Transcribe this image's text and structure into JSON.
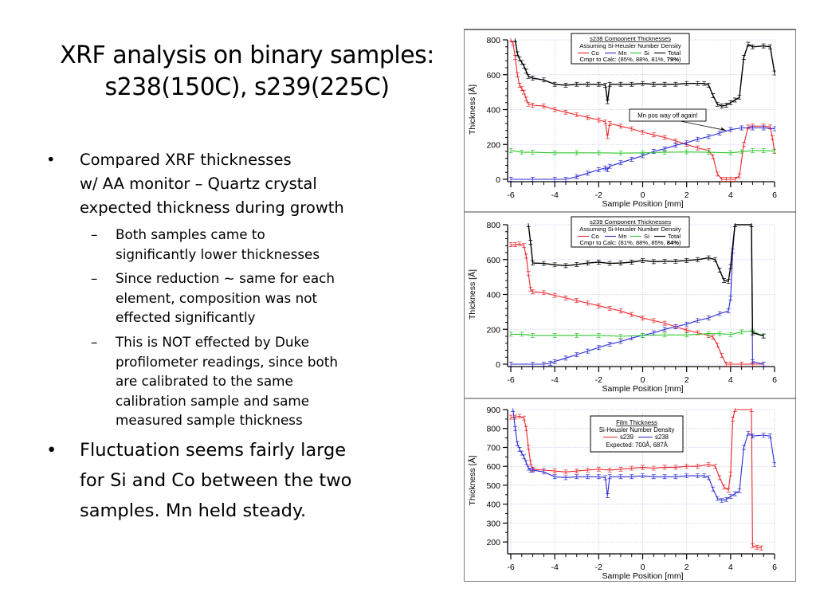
{
  "slide": {
    "title_line1": "XRF analysis on binary samples:",
    "title_line2": "s238(150C), s239(225C)",
    "bullets": [
      {
        "level": 1,
        "lines": [
          "Compared XRF thicknesses",
          "w/ AA monitor – Quartz crystal",
          "expected thickness during growth"
        ]
      },
      {
        "level": 2,
        "lines": [
          "Both samples came to",
          "significantly lower thicknesses"
        ]
      },
      {
        "level": 2,
        "lines": [
          "Since reduction ~ same for each",
          "element, composition was not",
          "effected significantly"
        ]
      },
      {
        "level": 2,
        "lines": [
          "This is NOT effected by Duke",
          "profilometer readings, since both",
          "are calibrated to the same",
          "calibration sample and same",
          "measured sample thickness"
        ]
      },
      {
        "level": 1,
        "lines": [
          "Fluctuation seems fairly large",
          "for Si and Co between the two",
          "samples.  Mn held steady."
        ]
      }
    ],
    "bullet_glyph": "•",
    "dash_glyph": "–"
  },
  "colors": {
    "co": "#e8262b",
    "mn": "#2a2ad0",
    "si": "#2fc62f",
    "total": "#000000",
    "s239": "#e8262b",
    "s238": "#2a2ad0",
    "grid": "#c9c9ee"
  },
  "chart_data": [
    {
      "type": "line",
      "title": "s238 Component Thicknesses",
      "subtitle": "Assuming Si-Heusler Number Density",
      "legend_entries": [
        "Co",
        "Mn",
        "Si",
        "Total"
      ],
      "compare_prefix": "Cmpr to Calc: (85%, 88%, 81%, ",
      "compare_bold": "79%",
      "compare_suffix": ")",
      "annotation": "Mn pos way off again!",
      "annotation_target": {
        "x": 4.0,
        "y": 285
      },
      "xlabel": "Sample Position [mm]",
      "ylabel": "Thickness [Å]",
      "xlim": [
        -6,
        6
      ],
      "ylim": [
        0,
        800
      ],
      "xticks": [
        "-6",
        "-4",
        "-2",
        "0",
        "2",
        "4",
        "6"
      ],
      "yticks": [
        "0",
        "200",
        "400",
        "600",
        "800"
      ],
      "legend_position": "top-center",
      "grid": true,
      "series": [
        {
          "name": "Co",
          "x": [
            -6,
            -5.9,
            -5.8,
            -5.7,
            -5.6,
            -5.5,
            -5.4,
            -5.3,
            -5.2,
            -5,
            -4.5,
            -4,
            -3.5,
            -3,
            -2.5,
            -2,
            -1.7,
            -1.6,
            -1.5,
            -1,
            -0.5,
            0,
            0.5,
            1,
            1.5,
            2,
            2.5,
            3,
            3.2,
            3.4,
            3.6,
            3.8,
            4,
            4.2,
            4.4,
            4.6,
            4.8,
            5,
            5.5,
            5.8,
            5.9,
            6
          ],
          "y": [
            800,
            780,
            700,
            600,
            540,
            520,
            500,
            460,
            430,
            425,
            420,
            400,
            385,
            370,
            355,
            340,
            330,
            245,
            320,
            305,
            290,
            270,
            255,
            240,
            220,
            200,
            180,
            165,
            130,
            30,
            0,
            0,
            0,
            0,
            20,
            200,
            300,
            305,
            305,
            300,
            240,
            160
          ]
        },
        {
          "name": "Mn",
          "x": [
            -6,
            -5,
            -4,
            -3.5,
            -3,
            -2.5,
            -2,
            -1.7,
            -1.6,
            -1.5,
            -1,
            -0.5,
            0,
            0.5,
            1,
            1.5,
            2,
            2.5,
            3,
            3.5,
            4,
            4.5,
            5,
            5.5,
            6
          ],
          "y": [
            0,
            0,
            0,
            0,
            15,
            35,
            55,
            65,
            55,
            75,
            95,
            115,
            135,
            160,
            175,
            195,
            210,
            230,
            245,
            265,
            285,
            295,
            295,
            295,
            290
          ]
        },
        {
          "name": "Si",
          "x": [
            -6,
            -5.5,
            -5,
            -4,
            -3,
            -2,
            -1,
            0,
            1,
            2,
            3,
            4,
            4.5,
            5,
            5.5,
            6
          ],
          "y": [
            165,
            155,
            155,
            152,
            152,
            152,
            150,
            152,
            155,
            157,
            155,
            152,
            158,
            165,
            165,
            162
          ]
        },
        {
          "name": "Total",
          "x": [
            -5.8,
            -5.7,
            -5.6,
            -5.5,
            -5.4,
            -5.3,
            -5.2,
            -5,
            -4.5,
            -4,
            -3.5,
            -3,
            -2.5,
            -2,
            -1.7,
            -1.6,
            -1.5,
            -1,
            -0.5,
            0,
            0.5,
            1,
            1.5,
            2,
            2.5,
            2.8,
            3,
            3.2,
            3.4,
            3.6,
            3.8,
            4,
            4.2,
            4.4,
            4.6,
            4.8,
            5,
            5.5,
            5.8,
            6
          ],
          "y": [
            800,
            720,
            690,
            670,
            650,
            620,
            590,
            580,
            570,
            545,
            540,
            545,
            545,
            545,
            540,
            445,
            545,
            545,
            545,
            550,
            545,
            545,
            545,
            550,
            550,
            550,
            540,
            480,
            430,
            420,
            425,
            440,
            455,
            470,
            700,
            775,
            760,
            765,
            760,
            610
          ]
        }
      ]
    },
    {
      "type": "line",
      "title": "s239 Component Thicknesses",
      "subtitle": "Assuming Si-Heusler Number Density",
      "legend_entries": [
        "Co",
        "Mn",
        "Si",
        "Total"
      ],
      "compare_prefix": "Cmpr to Calc: (81%, 88%, 85%, ",
      "compare_bold": "84%",
      "compare_suffix": ")",
      "xlabel": "Sample Position [mm]",
      "ylabel": "Thickness [Å]",
      "xlim": [
        -6,
        6
      ],
      "ylim": [
        0,
        800
      ],
      "xticks": [
        "-6",
        "-4",
        "-2",
        "0",
        "2",
        "4",
        "6"
      ],
      "yticks": [
        "0",
        "200",
        "400",
        "600",
        "800"
      ],
      "legend_position": "top-center",
      "grid": true,
      "series": [
        {
          "name": "Co",
          "x": [
            -6,
            -5.8,
            -5.6,
            -5.4,
            -5.3,
            -5.2,
            -5.1,
            -5,
            -4.5,
            -4,
            -3.5,
            -3,
            -2.5,
            -2,
            -1.5,
            -1,
            -0.5,
            0,
            0.5,
            1,
            1.5,
            2,
            2.5,
            3,
            3.2,
            3.4,
            3.6,
            3.8,
            4,
            4.5,
            5,
            5.5
          ],
          "y": [
            685,
            685,
            690,
            680,
            620,
            520,
            430,
            415,
            410,
            395,
            380,
            365,
            350,
            335,
            320,
            305,
            285,
            265,
            250,
            235,
            215,
            195,
            180,
            165,
            155,
            110,
            50,
            0,
            0,
            0,
            0,
            0
          ]
        },
        {
          "name": "Mn",
          "x": [
            -6,
            -5,
            -4.5,
            -4.2,
            -4,
            -3.5,
            -3,
            -2.5,
            -2,
            -1.5,
            -1,
            -0.5,
            0,
            0.5,
            1,
            1.5,
            2,
            2.5,
            3,
            3.5,
            3.9,
            4,
            4.1,
            4.2,
            4.95,
            5,
            5.5
          ],
          "y": [
            0,
            0,
            0,
            5,
            15,
            35,
            55,
            75,
            95,
            115,
            130,
            150,
            165,
            180,
            200,
            215,
            230,
            250,
            265,
            290,
            305,
            380,
            650,
            800,
            800,
            15,
            0
          ]
        },
        {
          "name": "Si",
          "x": [
            -6,
            -5.5,
            -5,
            -4,
            -3,
            -2,
            -1,
            0,
            1,
            2,
            3,
            3.5,
            4,
            4.5,
            5,
            5.5
          ],
          "y": [
            172,
            172,
            165,
            165,
            165,
            165,
            160,
            165,
            168,
            168,
            175,
            175,
            170,
            185,
            190,
            160
          ]
        },
        {
          "name": "Total",
          "x": [
            -5.2,
            -5.1,
            -5,
            -4.5,
            -4,
            -3.5,
            -3,
            -2.5,
            -2,
            -1.5,
            -1,
            -0.5,
            0,
            0.5,
            1,
            1.5,
            2,
            2.5,
            3,
            3.3,
            3.5,
            3.7,
            3.9,
            4,
            4.2,
            4.95,
            5,
            5.5
          ],
          "y": [
            800,
            700,
            580,
            578,
            570,
            565,
            572,
            580,
            585,
            578,
            580,
            585,
            595,
            588,
            590,
            590,
            595,
            600,
            610,
            600,
            540,
            480,
            475,
            560,
            800,
            800,
            180,
            162
          ]
        }
      ]
    },
    {
      "type": "line",
      "title": "Film Thickness",
      "subtitle": "Si-Heusler Number Density",
      "legend_entries": [
        "s239",
        "s238"
      ],
      "expected": "Expected: 700Å, 687Å",
      "xlabel": "Sample Position [mm]",
      "ylabel": "Thickness [Å]",
      "xlim": [
        -6,
        6
      ],
      "ylim": [
        150,
        900
      ],
      "xticks": [
        "-6",
        "-4",
        "-2",
        "0",
        "2",
        "4",
        "6"
      ],
      "yticks": [
        "200",
        "300",
        "400",
        "500",
        "600",
        "700",
        "800",
        "900"
      ],
      "legend_position": "top-center",
      "grid": true,
      "series": [
        {
          "name": "s239",
          "x": [
            -6,
            -5.8,
            -5.6,
            -5.4,
            -5.3,
            -5.2,
            -5.1,
            -5,
            -4.5,
            -4,
            -3.5,
            -3,
            -2.5,
            -2,
            -1.5,
            -1,
            -0.5,
            0,
            0.5,
            1,
            1.5,
            2,
            2.5,
            3,
            3.3,
            3.5,
            3.7,
            3.9,
            4,
            4.1,
            4.2,
            4.95,
            5,
            5.2,
            5.4
          ],
          "y": [
            860,
            860,
            865,
            855,
            800,
            700,
            620,
            585,
            580,
            575,
            570,
            575,
            580,
            585,
            580,
            585,
            590,
            595,
            590,
            595,
            595,
            600,
            600,
            610,
            600,
            540,
            490,
            475,
            560,
            850,
            900,
            900,
            180,
            172,
            168
          ]
        },
        {
          "name": "s238",
          "x": [
            -5.9,
            -5.8,
            -5.7,
            -5.6,
            -5.5,
            -5.4,
            -5.3,
            -5.2,
            -5.1,
            -5,
            -4.5,
            -4,
            -3.5,
            -3,
            -2.5,
            -2,
            -1.7,
            -1.6,
            -1.5,
            -1,
            -0.5,
            0,
            0.5,
            1,
            1.5,
            2,
            2.5,
            2.8,
            3,
            3.2,
            3.4,
            3.6,
            3.8,
            4,
            4.2,
            4.4,
            4.6,
            4.8,
            5,
            5.5,
            5.8,
            6
          ],
          "y": [
            900,
            800,
            720,
            690,
            670,
            650,
            620,
            590,
            580,
            580,
            570,
            545,
            540,
            545,
            545,
            545,
            540,
            445,
            545,
            545,
            545,
            550,
            545,
            545,
            545,
            550,
            550,
            550,
            540,
            480,
            430,
            420,
            425,
            440,
            455,
            470,
            700,
            775,
            760,
            765,
            760,
            610
          ]
        }
      ]
    }
  ]
}
